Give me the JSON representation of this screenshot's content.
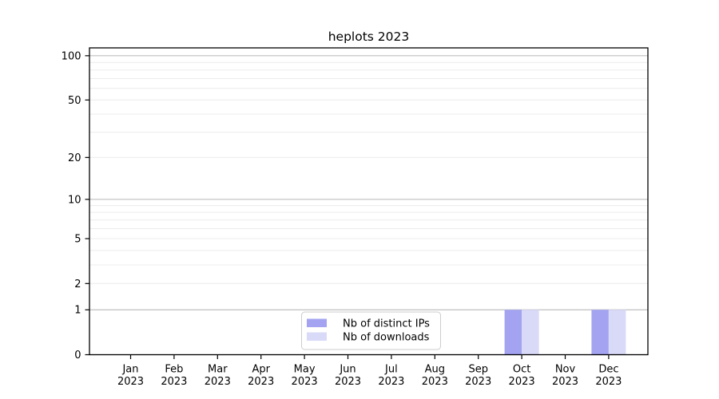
{
  "chart_data": {
    "type": "bar",
    "title": "heplots 2023",
    "categories": [
      "Jan",
      "Feb",
      "Mar",
      "Apr",
      "May",
      "Jun",
      "Jul",
      "Aug",
      "Sep",
      "Oct",
      "Nov",
      "Dec"
    ],
    "category_year": "2023",
    "series": [
      {
        "name": "Nb of distinct IPs",
        "color": "#a3a3f2",
        "values": [
          0,
          0,
          0,
          0,
          0,
          0,
          0,
          0,
          0,
          1,
          0,
          1
        ]
      },
      {
        "name": "Nb of downloads",
        "color": "#d9d9f8",
        "values": [
          0,
          0,
          0,
          0,
          0,
          0,
          0,
          0,
          0,
          1,
          0,
          1
        ]
      }
    ],
    "yscale": "log1p",
    "ylim": [
      0,
      113
    ],
    "yticks": [
      0,
      1,
      2,
      5,
      10,
      20,
      50,
      100
    ],
    "major_gridlines": [
      1,
      10,
      100
    ],
    "minor_gridlines": [
      2,
      3,
      4,
      5,
      6,
      7,
      8,
      9,
      20,
      30,
      40,
      50,
      60,
      70,
      80,
      90
    ],
    "grid": true,
    "legend_position": "bottom-center-inside",
    "colors": {
      "axis": "#000000",
      "major_grid": "#bfbfbf",
      "minor_grid": "#ececec",
      "legend_border": "#cccccc",
      "background": "#ffffff"
    }
  },
  "legend": {
    "items": [
      {
        "label": "Nb of distinct IPs",
        "color": "#a3a3f2"
      },
      {
        "label": "Nb of downloads",
        "color": "#d9d9f8"
      }
    ]
  }
}
